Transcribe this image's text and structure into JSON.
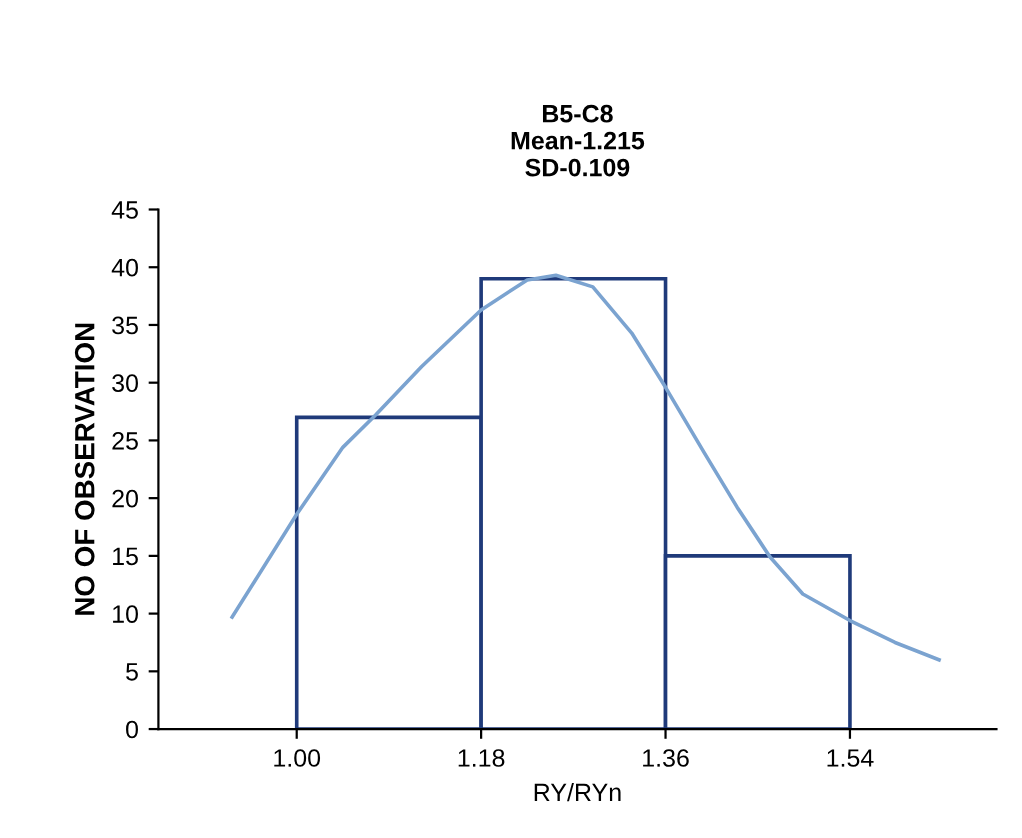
{
  "chart_data": {
    "type": "histogram",
    "title": "B5-C8\nMean-1.215\nSD-0.109",
    "xlabel": "RY/RYn",
    "ylabel": "NO OF OBSERVATION",
    "bins": [
      1.0,
      1.18,
      1.36,
      1.54
    ],
    "values": [
      27,
      39,
      15
    ],
    "color": "#1f3a7a",
    "series": [
      {
        "type": "line",
        "color": "#7ba3d0",
        "x": [
          0.937,
          1.0,
          1.045,
          1.077,
          1.122,
          1.18,
          1.225,
          1.253,
          1.289,
          1.327,
          1.36,
          1.398,
          1.43,
          1.462,
          1.494,
          1.54,
          1.584,
          1.627
        ],
        "values": [
          9.7,
          18.6,
          24.4,
          27.2,
          31.4,
          36.3,
          38.9,
          39.3,
          38.3,
          34.3,
          29.6,
          23.9,
          19.2,
          14.9,
          11.7,
          9.4,
          7.5,
          6.0
        ]
      }
    ],
    "xlim": [
      0.865,
      1.683
    ],
    "xticks": [
      {
        "value": 1.0,
        "label": "1.00"
      },
      {
        "value": 1.18,
        "label": "1.18"
      },
      {
        "value": 1.36,
        "label": "1.36"
      },
      {
        "value": 1.54,
        "label": "1.54"
      }
    ],
    "ylim": [
      0,
      45
    ],
    "yticks": [
      0,
      5,
      10,
      15,
      20,
      25,
      30,
      35,
      40,
      45
    ],
    "grid": false,
    "legend": false
  }
}
